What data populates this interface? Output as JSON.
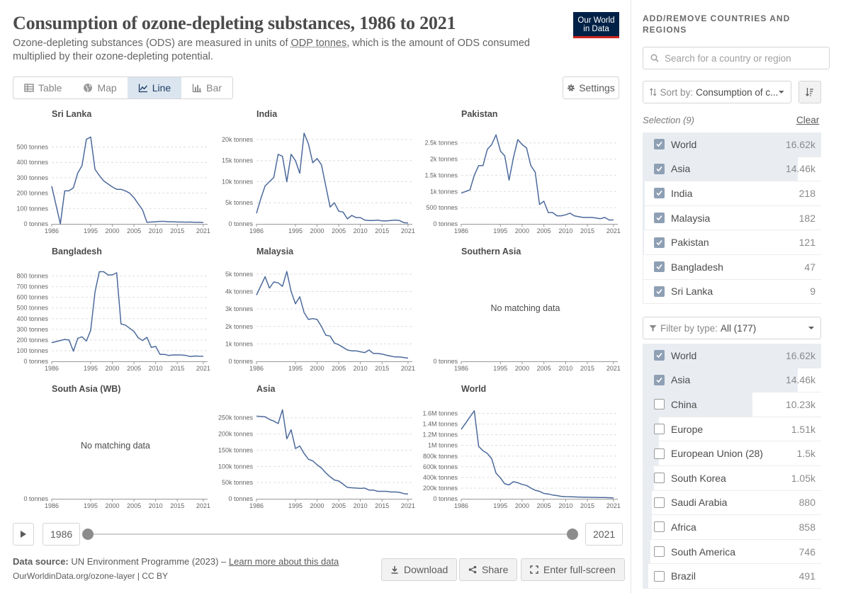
{
  "header": {
    "title": "Consumption of ozone-depleting substances, 1986 to 2021",
    "subtitle_before": "Ozone-depleting substances (ODS) are measured in units of ",
    "subtitle_link": "ODP tonnes",
    "subtitle_after": ", which is the amount of ODS consumed multiplied by their ozone-depleting potential.",
    "logo_line1": "Our World",
    "logo_line2": "in Data"
  },
  "tabs": [
    {
      "label": "Table",
      "icon": "table-icon"
    },
    {
      "label": "Map",
      "icon": "globe-icon"
    },
    {
      "label": "Line",
      "icon": "line-chart-icon",
      "active": true
    },
    {
      "label": "Bar",
      "icon": "bar-chart-icon"
    }
  ],
  "settings_label": "Settings",
  "timeline": {
    "start": "1986",
    "end": "2021"
  },
  "footer": {
    "source_label": "Data source:",
    "source_text": " UN Environment Programme (2023) – ",
    "learn_more": "Learn more about this data",
    "url": "OurWorldinData.org/ozone-layer | CC BY",
    "download": "Download",
    "share": "Share",
    "fullscreen": "Enter full-screen"
  },
  "sidebar": {
    "title": "ADD/REMOVE COUNTRIES AND REGIONS",
    "search_placeholder": "Search for a country or region",
    "sort_label": "Sort by:",
    "sort_value": "Consumption of c...",
    "selection_label": "Selection (9)",
    "clear": "Clear",
    "selected": [
      {
        "name": "World",
        "value": "16.62k",
        "frac": 1.0
      },
      {
        "name": "Asia",
        "value": "14.46k",
        "frac": 0.87
      },
      {
        "name": "India",
        "value": "218",
        "frac": 0.013
      },
      {
        "name": "Malaysia",
        "value": "182",
        "frac": 0.011
      },
      {
        "name": "Pakistan",
        "value": "121",
        "frac": 0.007
      },
      {
        "name": "Bangladesh",
        "value": "47",
        "frac": 0.003
      },
      {
        "name": "Sri Lanka",
        "value": "9",
        "frac": 0.0005
      }
    ],
    "filter_label": "Filter by type:",
    "filter_value": "All (177)",
    "all": [
      {
        "name": "World",
        "value": "16.62k",
        "frac": 1.0,
        "checked": true
      },
      {
        "name": "Asia",
        "value": "14.46k",
        "frac": 0.87,
        "checked": true
      },
      {
        "name": "China",
        "value": "10.23k",
        "frac": 0.615,
        "checked": false
      },
      {
        "name": "Europe",
        "value": "1.51k",
        "frac": 0.091,
        "checked": false
      },
      {
        "name": "European Union (28)",
        "value": "1.5k",
        "frac": 0.09,
        "checked": false
      },
      {
        "name": "South Korea",
        "value": "1.05k",
        "frac": 0.063,
        "checked": false
      },
      {
        "name": "Saudi Arabia",
        "value": "880",
        "frac": 0.053,
        "checked": false
      },
      {
        "name": "Africa",
        "value": "858",
        "frac": 0.052,
        "checked": false
      },
      {
        "name": "South America",
        "value": "746",
        "frac": 0.045,
        "checked": false
      },
      {
        "name": "Brazil",
        "value": "491",
        "frac": 0.03,
        "checked": false
      }
    ]
  },
  "chart_data": [
    {
      "type": "line",
      "title": "Sri Lanka",
      "yticks": [
        0,
        100,
        200,
        300,
        400,
        500
      ],
      "ytick_labels": [
        "0 tonnes",
        "100 tonnes",
        "200 tonnes",
        "300 tonnes",
        "400 tonnes",
        "500 tonnes"
      ],
      "ylim": [
        0,
        590
      ],
      "x": [
        1986,
        1988,
        1989,
        1990,
        1991,
        1992,
        1993,
        1994,
        1995,
        1996,
        1997,
        1998,
        1999,
        2000,
        2001,
        2002,
        2003,
        2004,
        2005,
        2006,
        2007,
        2008,
        2009,
        2010,
        2011,
        2012,
        2013,
        2014,
        2015,
        2016,
        2017,
        2018,
        2019,
        2020,
        2021
      ],
      "y": [
        245,
        0,
        215,
        215,
        235,
        330,
        380,
        550,
        565,
        355,
        315,
        280,
        260,
        240,
        225,
        225,
        215,
        200,
        170,
        130,
        90,
        10,
        12,
        14,
        16,
        16,
        14,
        14,
        12,
        12,
        11,
        12,
        10,
        10,
        9
      ]
    },
    {
      "type": "line",
      "title": "India",
      "yticks": [
        0,
        5000,
        10000,
        15000,
        20000
      ],
      "ytick_labels": [
        "0 tonnes",
        "5k tonnes",
        "10k tonnes",
        "15k tonnes",
        "20k tonnes"
      ],
      "ylim": [
        0,
        21500
      ],
      "x": [
        1986,
        1987,
        1988,
        1989,
        1990,
        1991,
        1992,
        1993,
        1994,
        1995,
        1996,
        1997,
        1998,
        1999,
        2000,
        2001,
        2002,
        2003,
        2004,
        2005,
        2006,
        2007,
        2008,
        2009,
        2010,
        2011,
        2012,
        2013,
        2014,
        2015,
        2016,
        2017,
        2018,
        2019,
        2020,
        2021
      ],
      "y": [
        2500,
        6000,
        9000,
        10000,
        11000,
        16500,
        16000,
        10000,
        16500,
        15000,
        12000,
        21500,
        19000,
        14500,
        15500,
        14000,
        9000,
        4000,
        5000,
        3000,
        2800,
        1200,
        2000,
        1500,
        1500,
        900,
        800,
        800,
        900,
        700,
        700,
        800,
        900,
        800,
        300,
        218
      ]
    },
    {
      "type": "line",
      "title": "Pakistan",
      "yticks": [
        0,
        500,
        1000,
        1500,
        2000,
        2500
      ],
      "ytick_labels": [
        "0 tonnes",
        "500 tonnes",
        "1k tonnes",
        "1.5k tonnes",
        "2k tonnes",
        "2.5k tonnes"
      ],
      "ylim": [
        0,
        2800
      ],
      "x": [
        1986,
        1988,
        1989,
        1990,
        1991,
        1992,
        1993,
        1994,
        1995,
        1996,
        1997,
        1998,
        1999,
        2000,
        2001,
        2002,
        2003,
        2004,
        2005,
        2006,
        2007,
        2008,
        2009,
        2010,
        2011,
        2012,
        2013,
        2014,
        2015,
        2016,
        2017,
        2018,
        2019,
        2020,
        2021
      ],
      "y": [
        950,
        1050,
        1500,
        1800,
        1800,
        2300,
        2450,
        2750,
        2250,
        2100,
        1350,
        2050,
        2600,
        2450,
        2350,
        1800,
        1600,
        600,
        700,
        350,
        350,
        250,
        250,
        280,
        330,
        250,
        220,
        200,
        200,
        200,
        180,
        160,
        200,
        120,
        121
      ]
    },
    {
      "type": "line",
      "title": "Bangladesh",
      "yticks": [
        0,
        100,
        200,
        300,
        400,
        500,
        600,
        700,
        800
      ],
      "ytick_labels": [
        "0 tonnes",
        "100 tonnes",
        "200 tonnes",
        "300 tonnes",
        "400 tonnes",
        "500 tonnes",
        "600 tonnes",
        "700 tonnes",
        "800 tonnes"
      ],
      "ylim": [
        0,
        850
      ],
      "x": [
        1986,
        1988,
        1989,
        1990,
        1991,
        1992,
        1993,
        1994,
        1995,
        1996,
        1997,
        1998,
        1999,
        2000,
        2001,
        2002,
        2003,
        2004,
        2005,
        2006,
        2007,
        2008,
        2009,
        2010,
        2011,
        2012,
        2013,
        2014,
        2015,
        2016,
        2017,
        2018,
        2019,
        2020,
        2021
      ],
      "y": [
        175,
        195,
        205,
        200,
        95,
        215,
        230,
        190,
        290,
        650,
        840,
        840,
        810,
        810,
        830,
        350,
        340,
        310,
        280,
        220,
        195,
        225,
        130,
        140,
        65,
        65,
        55,
        60,
        60,
        60,
        55,
        45,
        50,
        48,
        47
      ]
    },
    {
      "type": "line",
      "title": "Malaysia",
      "yticks": [
        0,
        1000,
        2000,
        3000,
        4000,
        5000
      ],
      "ytick_labels": [
        "0 tonnes",
        "1k tonnes",
        "2k tonnes",
        "3k tonnes",
        "4k tonnes",
        "5k tonnes"
      ],
      "ylim": [
        0,
        5200
      ],
      "x": [
        1986,
        1988,
        1989,
        1990,
        1991,
        1992,
        1993,
        1994,
        1995,
        1996,
        1997,
        1998,
        1999,
        2000,
        2001,
        2002,
        2003,
        2004,
        2005,
        2006,
        2007,
        2008,
        2009,
        2010,
        2011,
        2012,
        2013,
        2014,
        2015,
        2016,
        2017,
        2018,
        2019,
        2020,
        2021
      ],
      "y": [
        3800,
        4850,
        4200,
        4550,
        4500,
        4300,
        5150,
        4000,
        3300,
        3700,
        2800,
        2400,
        2450,
        2400,
        2000,
        1500,
        1450,
        1050,
        950,
        800,
        650,
        600,
        600,
        550,
        500,
        650,
        450,
        450,
        420,
        350,
        300,
        250,
        250,
        220,
        182
      ]
    },
    {
      "type": "line",
      "title": "Southern Asia",
      "no_data": true,
      "no_data_label": "No matching data",
      "yticks": [
        0
      ],
      "ytick_labels": [
        "0 tonnes"
      ],
      "ylim": [
        0,
        1
      ],
      "x": [],
      "y": []
    },
    {
      "type": "line",
      "title": "South Asia (WB)",
      "no_data": true,
      "no_data_label": "No matching data",
      "yticks": [
        0
      ],
      "ytick_labels": [
        "0 tonnes"
      ],
      "ylim": [
        0,
        1
      ],
      "x": [],
      "y": []
    },
    {
      "type": "line",
      "title": "Asia",
      "yticks": [
        0,
        50000,
        100000,
        150000,
        200000,
        250000
      ],
      "ytick_labels": [
        "0 tonnes",
        "50k tonnes",
        "100k tonnes",
        "150k tonnes",
        "200k tonnes",
        "250k tonnes"
      ],
      "ylim": [
        0,
        280000
      ],
      "x": [
        1986,
        1988,
        1989,
        1990,
        1991,
        1992,
        1993,
        1994,
        1995,
        1996,
        1997,
        1998,
        1999,
        2000,
        2001,
        2002,
        2003,
        2004,
        2005,
        2006,
        2007,
        2008,
        2009,
        2010,
        2011,
        2012,
        2013,
        2014,
        2015,
        2016,
        2017,
        2018,
        2019,
        2020,
        2021
      ],
      "y": [
        255000,
        253000,
        245000,
        240000,
        232000,
        275000,
        185000,
        213000,
        155000,
        163000,
        140000,
        122000,
        117000,
        105000,
        95000,
        80000,
        68000,
        58000,
        55000,
        45000,
        35000,
        34000,
        33000,
        32000,
        33000,
        27000,
        27000,
        23000,
        23000,
        23000,
        21000,
        21000,
        20000,
        16000,
        14460
      ]
    },
    {
      "type": "line",
      "title": "World",
      "yticks": [
        0,
        200000,
        400000,
        600000,
        800000,
        1000000,
        1200000,
        1400000,
        1600000
      ],
      "ytick_labels": [
        "0 tonnes",
        "200k tonnes",
        "400k tonnes",
        "600k tonnes",
        "800k tonnes",
        "1M tonnes",
        "1.2M tonnes",
        "1.4M tonnes",
        "1.6M tonnes"
      ],
      "ylim": [
        0,
        1700000
      ],
      "x": [
        1986,
        1989,
        1990,
        1991,
        1992,
        1993,
        1994,
        1995,
        1996,
        1997,
        1998,
        1999,
        2000,
        2001,
        2002,
        2003,
        2004,
        2005,
        2006,
        2007,
        2008,
        2009,
        2010,
        2011,
        2012,
        2013,
        2014,
        2015,
        2016,
        2017,
        2018,
        2019,
        2020,
        2021
      ],
      "y": [
        1300000,
        1650000,
        980000,
        900000,
        850000,
        750000,
        480000,
        390000,
        280000,
        260000,
        320000,
        300000,
        270000,
        250000,
        200000,
        160000,
        140000,
        100000,
        90000,
        70000,
        60000,
        45000,
        40000,
        38000,
        35000,
        32000,
        30000,
        28000,
        27000,
        25000,
        23000,
        22000,
        20000,
        16620
      ]
    }
  ]
}
